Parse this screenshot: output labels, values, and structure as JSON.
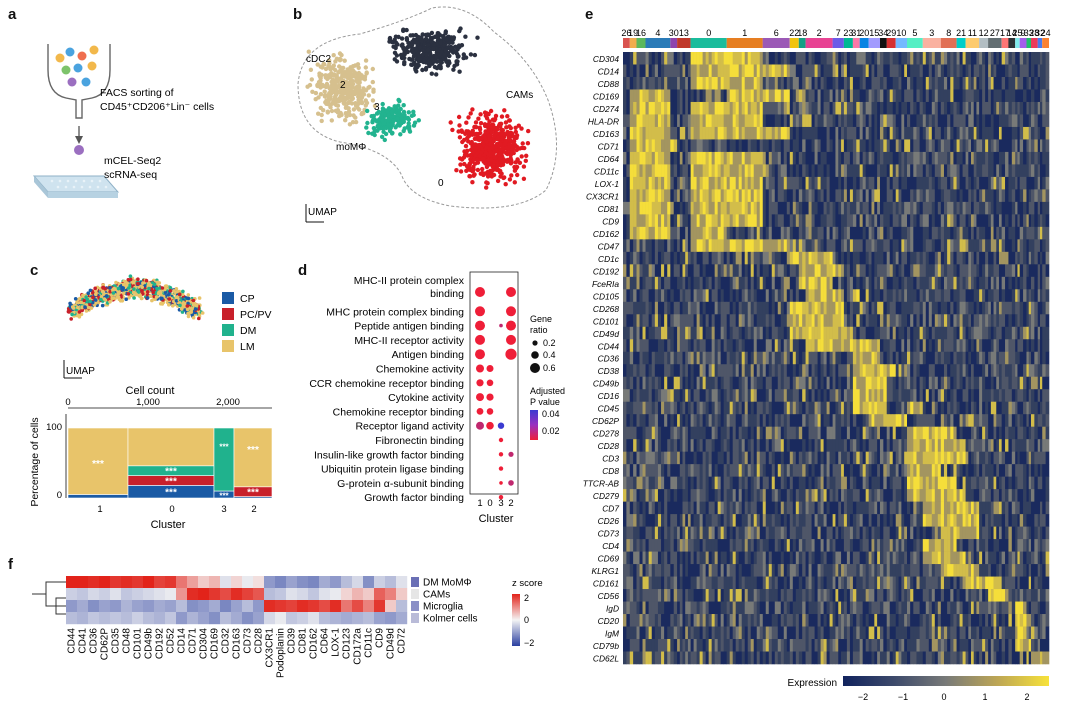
{
  "panel_a": {
    "letter": "a",
    "line1": "FACS sorting of",
    "line2": "CD45⁺CD206⁺Lin⁻ cells",
    "line3": "mCEL-Seq2",
    "line4": "scRNA-seq"
  },
  "panel_b": {
    "letter": "b",
    "umap": "UMAP",
    "labels": [
      "cDC2",
      "moMΦ",
      "CAMs"
    ],
    "cluster_nums": [
      "2",
      "3",
      "0"
    ],
    "colors": {
      "cdc2": "#d6c08e",
      "dark": "#2b3140",
      "mo": "#22b38f",
      "cams": "#e11a22"
    }
  },
  "panel_c": {
    "letter": "c",
    "umap": "UMAP",
    "legend": [
      {
        "label": "CP",
        "color": "#1a5aa5"
      },
      {
        "label": "PC/PV",
        "color": "#c8202a"
      },
      {
        "label": "DM",
        "color": "#20b28d"
      },
      {
        "label": "LM",
        "color": "#e8c46a"
      }
    ],
    "top_axis_title": "Cell count",
    "top_ticks": [
      "0",
      "1,000",
      "2,000"
    ],
    "y_title": "Percentage of cells",
    "y_ticks": [
      "100",
      "0"
    ],
    "x_title": "Cluster",
    "clusters": [
      "1",
      "0",
      "3",
      "2"
    ],
    "star": "***"
  },
  "panel_d": {
    "letter": "d",
    "terms": [
      "MHC-II protein complex binding",
      "MHC protein complex binding",
      "Peptide antigen binding",
      "MHC-II receptor activity",
      "Antigen binding",
      "Chemokine activity",
      "CCR chemokine receptor binding",
      "Cytokine activity",
      "Chemokine receptor binding",
      "Receptor ligand activity",
      "Fibronectin binding",
      "Insulin-like growth factor binding",
      "Ubiquitin protein ligase binding",
      "G-protein α-subunit binding",
      "Growth factor binding"
    ],
    "mhc_line1": "MHC-II protein complex",
    "mhc_line2": "binding",
    "clusters": [
      "1",
      "0",
      "3",
      "2"
    ],
    "x_title": "Cluster",
    "size_legend_title1": "Gene",
    "size_legend_title2": "ratio",
    "size_legend": [
      "0.2",
      "0.4",
      "0.6"
    ],
    "color_legend_title1": "Adjusted",
    "color_legend_title2": "P value",
    "color_legend": [
      "0.04",
      "0.02"
    ]
  },
  "panel_e": {
    "letter": "e",
    "top_clusters": [
      "26",
      "19",
      "16",
      "4",
      "30",
      "13",
      "0",
      "1",
      "6",
      "22",
      "18",
      "2",
      "7",
      "23",
      "31",
      "20",
      "15",
      "34",
      "29",
      "10",
      "5",
      "3",
      "8",
      "21",
      "11",
      "12",
      "27",
      "17",
      "14",
      "25",
      "9",
      "33",
      "28",
      "32",
      "24"
    ],
    "genes": [
      "CD304",
      "CD14",
      "CD88",
      "CD169",
      "CD274",
      "HLA-DR",
      "CD163",
      "CD71",
      "CD64",
      "CD11c",
      "LOX-1",
      "CX3CR1",
      "CD81",
      "CD9",
      "CD162",
      "CD47",
      "CD1c",
      "CD192",
      "FceRIa",
      "CD105",
      "CD268",
      "CD101",
      "CD49d",
      "CD44",
      "CD36",
      "CD38",
      "CD49b",
      "CD16",
      "CD45",
      "CD62P",
      "CD278",
      "CD28",
      "CD3",
      "CD8",
      "TTCR-AB",
      "CD279",
      "CD7",
      "CD26",
      "CD73",
      "CD4",
      "CD69",
      "KLRG1",
      "CD161",
      "CD56",
      "IgD",
      "CD20",
      "IgM",
      "CD79b",
      "CD62L"
    ],
    "legend_title": "Expression",
    "legend_ticks": [
      "−2",
      "−1",
      "0",
      "1",
      "2"
    ]
  },
  "panel_f": {
    "letter": "f",
    "rows": [
      "DM MoMΦ",
      "CAMs",
      "Microglia",
      "Kolmer cells"
    ],
    "row_colors": [
      "#6a6fb5",
      "#e6e6e6",
      "#8a8fc6",
      "#b9bbd8"
    ],
    "columns": [
      "CD44",
      "CD41",
      "CD36",
      "CD62P",
      "CD35",
      "CD48",
      "CD101",
      "CD49b",
      "CD192",
      "CD52",
      "CD14",
      "CD71",
      "CD304",
      "CD169",
      "CD32",
      "CD163",
      "CD73",
      "CD28",
      "CX3CR1",
      "Podoplanin",
      "CD39",
      "CD81",
      "CD162",
      "CD64",
      "LOX-1",
      "CD123",
      "CD172a",
      "CD11c",
      "CD9",
      "CD49d",
      "CD72"
    ],
    "zscores": [
      [
        2,
        2,
        1.9,
        2,
        1.8,
        1.9,
        1.8,
        2,
        1.7,
        1.8,
        1.2,
        0.8,
        0.4,
        0.6,
        -0.2,
        0.3,
        -0.1,
        0.2,
        -1,
        -1.2,
        -0.9,
        -1.1,
        -1.2,
        -0.8,
        -1,
        -0.6,
        -0.3,
        -1.1,
        -0.4,
        -0.6,
        -0.2
      ],
      [
        -0.4,
        -0.5,
        -0.3,
        -0.4,
        -0.2,
        -0.5,
        -0.4,
        -0.3,
        -0.2,
        -0.1,
        0.9,
        1.9,
        2,
        1.8,
        1.6,
        1.9,
        1.7,
        1.5,
        -0.6,
        -0.5,
        -0.2,
        -0.3,
        -0.5,
        -0.2,
        -0.1,
        0.3,
        0.6,
        0.4,
        1.4,
        1.1,
        0.4
      ],
      [
        -1,
        -0.8,
        -1.1,
        -0.9,
        -1,
        -0.7,
        -0.9,
        -1,
        -0.8,
        -0.9,
        -0.6,
        -1.1,
        -1,
        -0.8,
        -1.2,
        -0.9,
        -0.6,
        -1,
        1.9,
        1.8,
        1.7,
        1.9,
        1.8,
        1.6,
        1.9,
        1.2,
        1.6,
        1.1,
        1.8,
        0.4,
        -0.6
      ],
      [
        -0.6,
        -0.7,
        -0.5,
        -0.6,
        -0.5,
        -0.6,
        -0.4,
        -0.6,
        -0.7,
        -0.5,
        -1,
        -0.7,
        -0.9,
        -1.1,
        -0.6,
        -0.8,
        -1.1,
        -0.9,
        -0.3,
        -0.1,
        -0.5,
        -0.4,
        -0.2,
        -0.6,
        -0.7,
        -0.8,
        -0.7,
        -0.6,
        -0.9,
        -1,
        -0.8
      ]
    ],
    "legend_title": "z score",
    "legend_ticks": [
      "2",
      "0",
      "−2"
    ]
  }
}
